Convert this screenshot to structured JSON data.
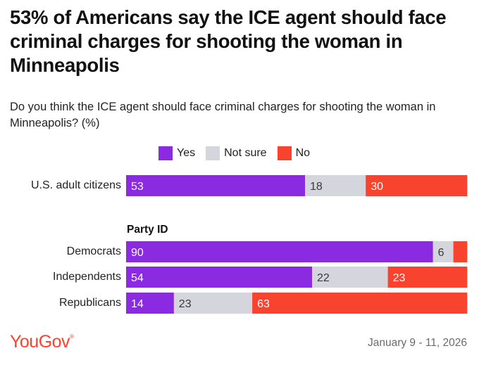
{
  "title": "53% of Americans say the ICE agent should face criminal charges for shooting the woman in Minneapolis",
  "subtitle": "Do you think the ICE agent should face criminal charges for shooting the woman in Minneapolis? (%)",
  "section_label": "Party ID",
  "brand": "YouGov",
  "brand_mark": "®",
  "date": "January 9 - 11, 2026",
  "colors": {
    "yes": "#8a2be2",
    "not_sure": "#d5d6dd",
    "no": "#f8432f"
  },
  "chart_data": {
    "type": "bar",
    "orientation": "horizontal",
    "stacked": true,
    "categories": [
      "U.S. adult citizens",
      "Democrats",
      "Independents",
      "Republicans"
    ],
    "series": [
      {
        "name": "Yes",
        "values": [
          53,
          90,
          54,
          14
        ]
      },
      {
        "name": "Not sure",
        "values": [
          18,
          6,
          22,
          23
        ]
      },
      {
        "name": "No",
        "values": [
          30,
          4,
          23,
          63
        ]
      }
    ],
    "data_labels": [
      [
        "53",
        "18",
        "30"
      ],
      [
        "90",
        "6",
        ""
      ],
      [
        "54",
        "22",
        "23"
      ],
      [
        "14",
        "23",
        "63"
      ]
    ],
    "legend": [
      "Yes",
      "Not sure",
      "No"
    ],
    "legend_position": "top",
    "grid": false
  }
}
